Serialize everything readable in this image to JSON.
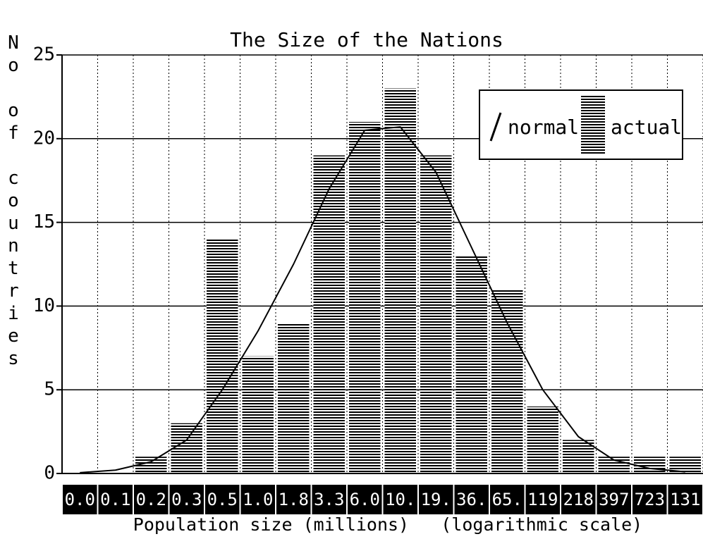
{
  "chart_data": {
    "type": "histogram",
    "title": "The Size of the Nations",
    "xlabel": "Population size (millions)   (logarithmic scale)",
    "ylabel": "No of countries",
    "categories": [
      "0.0",
      "0.1",
      "0.2",
      "0.3",
      "0.5",
      "1.0",
      "1.8",
      "3.3",
      "6.0",
      "10.",
      "19.",
      "36.",
      "65.",
      "119",
      "218",
      "397",
      "723",
      "131"
    ],
    "series": [
      {
        "name": "actual",
        "color": "#000000",
        "values": [
          0,
          0,
          1,
          3,
          14,
          7,
          9,
          19,
          21,
          23,
          19,
          13,
          11,
          4,
          2,
          1,
          1,
          1
        ]
      },
      {
        "name": "normal",
        "color": "#000000",
        "values": [
          0.05,
          0.2,
          0.7,
          2,
          5,
          8.5,
          12.5,
          17,
          20.5,
          20.7,
          18,
          13.5,
          9,
          5,
          2.2,
          0.8,
          0.3,
          0.1
        ]
      }
    ],
    "ylim": [
      0,
      25
    ],
    "yticks": [
      0,
      5,
      10,
      15,
      20,
      25
    ],
    "grid": true,
    "legend": "upper right"
  }
}
